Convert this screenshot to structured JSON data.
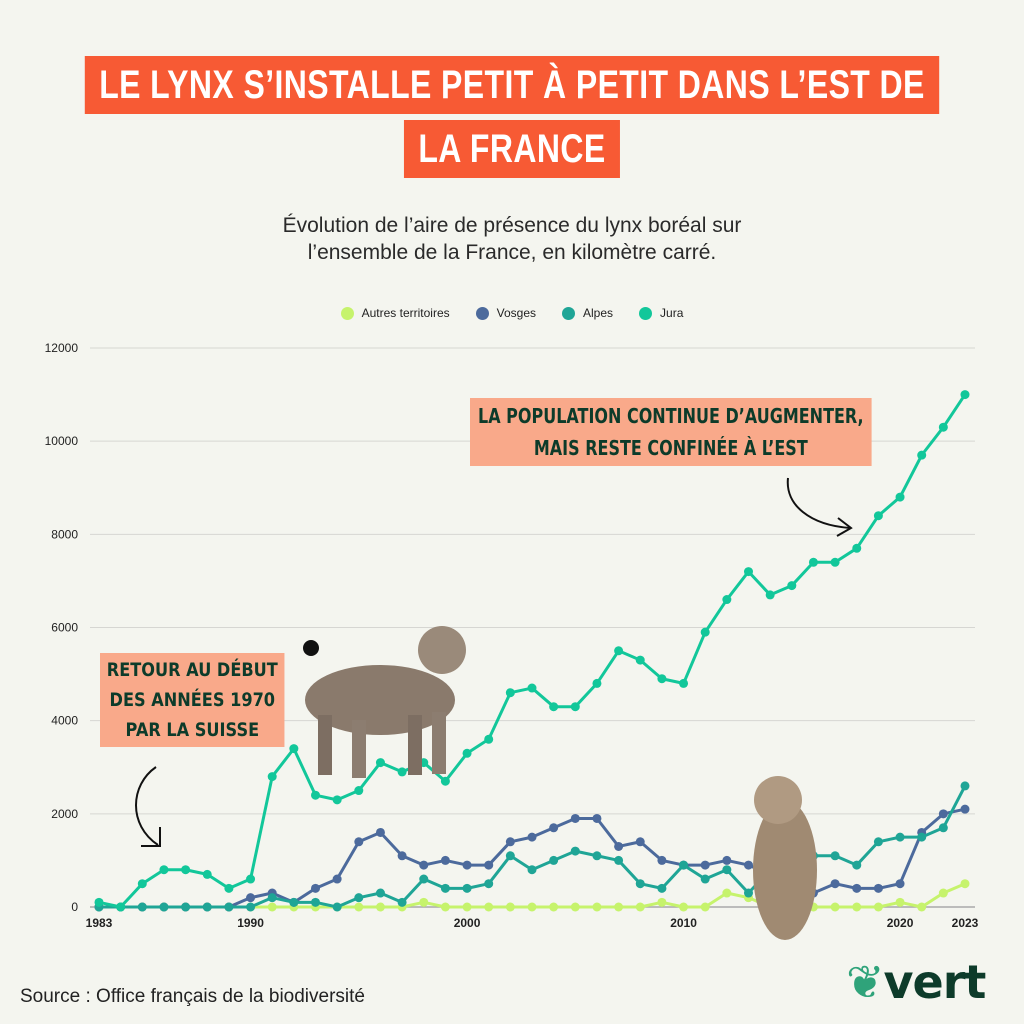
{
  "title_lines": [
    "LE LYNX S’INSTALLE PETIT À PETIT DANS L’EST DE",
    "LA FRANCE"
  ],
  "subtitle_lines": [
    "Évolution de l’aire de présence du lynx boréal sur",
    "l’ensemble de la France, en kilomètre carré."
  ],
  "annotations": {
    "top": [
      "LA POPULATION CONTINUE D’AUGMENTER,",
      "MAIS RESTE CONFINÉE À L’EST"
    ],
    "left": [
      "RETOUR AU DÉBUT",
      "DES ANNÉES 1970",
      "PAR LA SUISSE"
    ]
  },
  "source": "Source : Office français de la biodiversité",
  "logo_text": "vert",
  "chart_data": {
    "type": "line",
    "title": "Évolution de l’aire de présence du lynx boréal sur l’ensemble de la France, en kilomètre carré.",
    "xlabel": "",
    "ylabel": "",
    "x_start": 1983,
    "x_end": 2023,
    "x_ticks": [
      "1983",
      "1990",
      "2000",
      "2010",
      "2020",
      "2023"
    ],
    "y_ticks": [
      "0",
      "2000",
      "4000",
      "6000",
      "8000",
      "10000",
      "12000"
    ],
    "ylim": [
      0,
      12000
    ],
    "grid": true,
    "legend_position": "top",
    "series": [
      {
        "name": "Autres territoires",
        "color": "#c6f36c",
        "values": [
          0,
          0,
          0,
          0,
          0,
          0,
          0,
          0,
          0,
          0,
          0,
          0,
          0,
          0,
          0,
          100,
          0,
          0,
          0,
          0,
          0,
          0,
          0,
          0,
          0,
          0,
          100,
          0,
          0,
          300,
          200,
          0,
          0,
          0,
          0,
          0,
          0,
          100,
          0,
          300,
          500
        ]
      },
      {
        "name": "Vosges",
        "color": "#4c6a9c",
        "values": [
          0,
          0,
          0,
          0,
          0,
          0,
          0,
          200,
          300,
          100,
          400,
          600,
          1400,
          1600,
          1100,
          900,
          1000,
          900,
          900,
          1400,
          1500,
          1700,
          1900,
          1900,
          1300,
          1400,
          1000,
          900,
          900,
          1000,
          900,
          700,
          200,
          300,
          500,
          400,
          400,
          500,
          1600,
          2000,
          2100
        ]
      },
      {
        "name": "Alpes",
        "color": "#1fa596",
        "values": [
          0,
          0,
          0,
          0,
          0,
          0,
          0,
          0,
          200,
          100,
          100,
          0,
          200,
          300,
          100,
          600,
          400,
          400,
          500,
          1100,
          800,
          1000,
          1200,
          1100,
          1000,
          500,
          400,
          900,
          600,
          800,
          300,
          800,
          1000,
          1100,
          1100,
          900,
          1400,
          1500,
          1500,
          1700,
          2600
        ]
      },
      {
        "name": "Jura",
        "color": "#12c79a",
        "values": [
          100,
          0,
          500,
          800,
          800,
          700,
          400,
          600,
          2800,
          3400,
          2400,
          2300,
          2500,
          3100,
          2900,
          3100,
          2700,
          3300,
          3600,
          4600,
          4700,
          4300,
          4300,
          4800,
          5500,
          5300,
          4900,
          4800,
          5900,
          6600,
          7200,
          6700,
          6900,
          7400,
          7400,
          7700,
          8400,
          8800,
          9700,
          10300,
          11000
        ]
      }
    ]
  }
}
